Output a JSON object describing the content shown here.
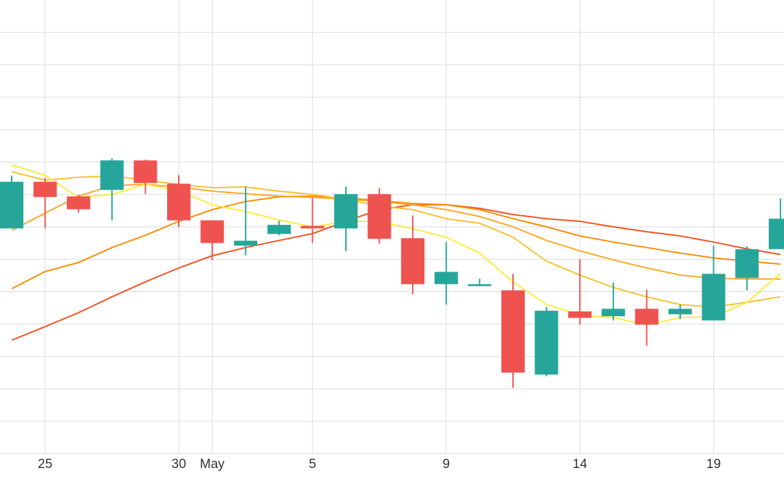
{
  "chart_data": {
    "type": "candlestick",
    "categories": [
      null,
      "25",
      null,
      null,
      null,
      "30",
      "May",
      null,
      null,
      "5",
      null,
      null,
      null,
      "9",
      null,
      null,
      null,
      "14",
      null,
      null,
      null,
      "19",
      null,
      null
    ],
    "open": [
      69.5,
      83.9,
      79.4,
      81.4,
      90.5,
      83.3,
      72.0,
      64.2,
      67.8,
      70.3,
      69.5,
      80.1,
      66.5,
      52.3,
      51.7,
      50.4,
      24.4,
      43.9,
      42.4,
      44.7,
      43.0,
      41.1,
      54.2,
      63.1
    ],
    "high": [
      85.8,
      85.2,
      79.9,
      91.1,
      90.7,
      86.0,
      72.0,
      82.4,
      71.8,
      79.0,
      82.4,
      82.0,
      73.5,
      65.3,
      54.0,
      55.5,
      45.3,
      60.0,
      52.8,
      50.6,
      46.0,
      64.2,
      64.0,
      78.8
    ],
    "low": [
      69.5,
      69.5,
      74.4,
      72.0,
      80.1,
      69.9,
      59.7,
      61.2,
      67.4,
      65.0,
      62.5,
      64.8,
      49.2,
      46.0,
      51.7,
      20.3,
      23.9,
      39.8,
      41.1,
      33.3,
      41.5,
      41.1,
      50.4,
      63.1
    ],
    "close": [
      83.9,
      79.2,
      75.4,
      90.5,
      83.5,
      72.0,
      65.0,
      65.7,
      70.6,
      69.5,
      80.1,
      66.3,
      52.3,
      56.1,
      52.3,
      25.0,
      44.1,
      41.9,
      44.7,
      39.8,
      44.7,
      55.5,
      63.1,
      72.5
    ],
    "up_color": "#26a69a",
    "down_color": "#ef5350",
    "overlays": [
      {
        "type": "line",
        "color": "#f4511e",
        "values": [
          35.0,
          39.2,
          43.5,
          48.4,
          53.0,
          57.3,
          61.1,
          63.6,
          65.8,
          67.9,
          71.7,
          75.3,
          76.8,
          76.8,
          75.7,
          73.8,
          72.5,
          71.7,
          70.0,
          68.5,
          67.2,
          65.3,
          63.2,
          61.5
        ]
      },
      {
        "type": "line",
        "color": "#fb8c00",
        "values": [
          50.9,
          56.2,
          59.0,
          63.6,
          67.4,
          71.7,
          75.3,
          77.8,
          79.3,
          79.5,
          78.9,
          78.1,
          77.2,
          76.8,
          75.3,
          72.5,
          70.0,
          67.2,
          65.3,
          63.6,
          61.9,
          60.4,
          59.4,
          58.5
        ]
      },
      {
        "type": "line",
        "color": "#ffa726",
        "values": [
          68.9,
          74.2,
          79.5,
          82.7,
          83.1,
          82.3,
          81.0,
          80.2,
          79.5,
          79.1,
          78.5,
          77.8,
          76.8,
          75.3,
          73.2,
          70.0,
          65.8,
          62.6,
          59.8,
          57.3,
          55.1,
          54.1,
          53.9,
          53.9
        ]
      },
      {
        "type": "line",
        "color": "#fbc02d",
        "values": [
          87.0,
          84.4,
          85.3,
          85.7,
          84.4,
          83.1,
          82.1,
          82.3,
          81.0,
          80.0,
          78.5,
          76.4,
          75.3,
          72.5,
          71.1,
          66.8,
          59.4,
          55.1,
          51.3,
          48.4,
          46.0,
          45.2,
          46.7,
          48.4
        ]
      },
      {
        "type": "line",
        "color": "#ffeb3b",
        "values": [
          89.1,
          85.9,
          79.1,
          80.0,
          83.1,
          81.2,
          76.8,
          74.7,
          72.1,
          70.0,
          71.7,
          71.7,
          69.4,
          66.8,
          61.9,
          53.0,
          46.0,
          42.8,
          42.0,
          39.7,
          42.0,
          42.2,
          46.7,
          55.6
        ]
      }
    ],
    "ylim": [
      0,
      140
    ],
    "yticks": [
      0,
      10,
      20,
      30,
      40,
      50,
      60,
      70,
      80,
      90,
      100,
      110,
      120,
      130
    ],
    "grid": true
  }
}
